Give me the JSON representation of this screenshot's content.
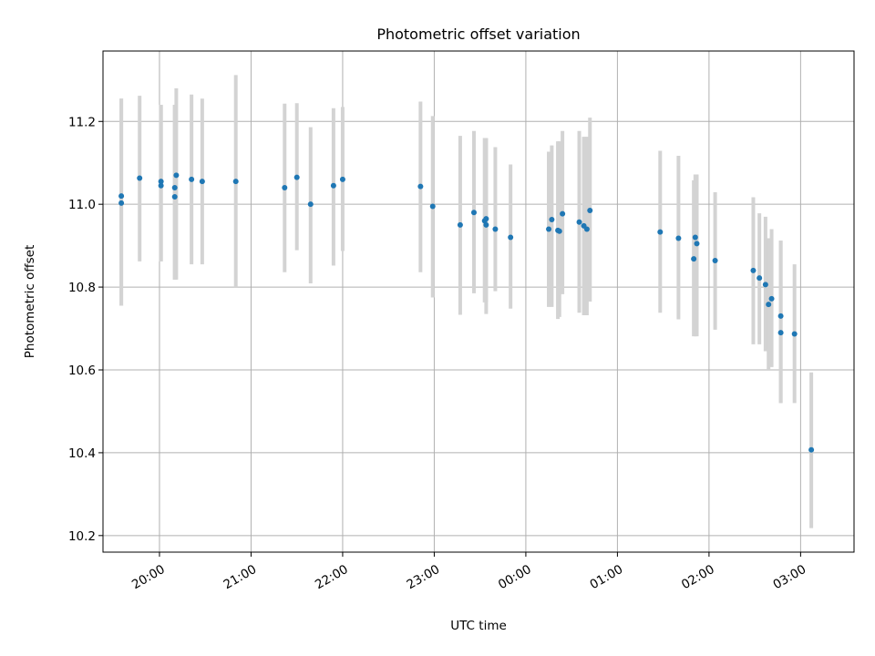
{
  "chart_data": {
    "type": "scatter",
    "title": "Photometric offset variation",
    "xlabel": "UTC time",
    "ylabel": "Photometric offset",
    "xaxis": {
      "kind": "time",
      "range": [
        "19:23",
        "03:35"
      ],
      "ticks": [
        "20:00",
        "21:00",
        "22:00",
        "23:00",
        "00:00",
        "01:00",
        "02:00",
        "03:00"
      ]
    },
    "ylim": [
      10.16,
      11.37
    ],
    "yticks": [
      "10.2",
      "10.4",
      "10.6",
      "10.8",
      "11.0",
      "11.2"
    ],
    "grid": true,
    "colors": {
      "point": "#1f77b4",
      "errorbar": "#d3d3d3",
      "grid": "#b0b0b0"
    },
    "series": [
      {
        "x": [
          "19:35",
          "19:35",
          "19:47",
          "20:01",
          "20:01",
          "20:10",
          "20:10",
          "20:11",
          "20:21",
          "20:28",
          "20:50",
          "21:22",
          "21:30",
          "21:39",
          "21:54",
          "22:00",
          "22:51",
          "22:59",
          "23:17",
          "23:26",
          "23:33",
          "23:34",
          "23:34",
          "23:40",
          "23:50",
          "00:15",
          "00:17",
          "00:21",
          "00:22",
          "00:24",
          "00:35",
          "00:38",
          "00:40",
          "00:42",
          "01:28",
          "01:40",
          "01:50",
          "01:51",
          "01:52",
          "02:04",
          "02:29",
          "02:33",
          "02:37",
          "02:39",
          "02:41",
          "02:47",
          "02:47",
          "02:56",
          "03:07"
        ],
        "y": [
          11.02,
          11.003,
          11.063,
          11.045,
          11.055,
          11.018,
          11.04,
          11.07,
          11.06,
          11.055,
          11.055,
          11.04,
          11.065,
          11.0,
          11.045,
          11.06,
          11.043,
          10.995,
          10.95,
          10.98,
          10.96,
          10.965,
          10.95,
          10.94,
          10.92,
          10.94,
          10.963,
          10.937,
          10.935,
          10.977,
          10.957,
          10.948,
          10.94,
          10.985,
          10.933,
          10.918,
          10.868,
          10.92,
          10.905,
          10.864,
          10.84,
          10.822,
          10.806,
          10.758,
          10.772,
          10.73,
          10.69,
          10.687,
          10.407
        ],
        "yerr_low": [
          10.755,
          10.755,
          10.862,
          10.862,
          10.862,
          10.818,
          10.818,
          10.818,
          10.855,
          10.855,
          10.8,
          10.836,
          10.889,
          10.809,
          10.852,
          10.887,
          10.836,
          10.775,
          10.733,
          10.785,
          10.763,
          10.763,
          10.735,
          10.79,
          10.748,
          10.752,
          10.752,
          10.723,
          10.728,
          10.783,
          10.738,
          10.732,
          10.732,
          10.765,
          10.738,
          10.722,
          10.681,
          10.681,
          10.681,
          10.697,
          10.662,
          10.662,
          10.645,
          10.6,
          10.607,
          10.52,
          10.52,
          10.52,
          10.218
        ],
        "yerr_high": [
          11.255,
          11.255,
          11.262,
          11.24,
          11.24,
          11.24,
          11.24,
          11.28,
          11.265,
          11.255,
          11.312,
          11.243,
          11.244,
          11.186,
          11.232,
          11.235,
          11.248,
          11.213,
          11.165,
          11.177,
          11.16,
          11.16,
          11.16,
          11.138,
          11.096,
          11.127,
          11.142,
          11.152,
          11.152,
          11.177,
          11.177,
          11.163,
          11.163,
          11.209,
          11.129,
          11.117,
          11.058,
          11.072,
          11.072,
          11.029,
          11.017,
          10.978,
          10.97,
          10.918,
          10.94,
          10.912,
          10.912,
          10.855,
          10.594
        ]
      }
    ]
  }
}
